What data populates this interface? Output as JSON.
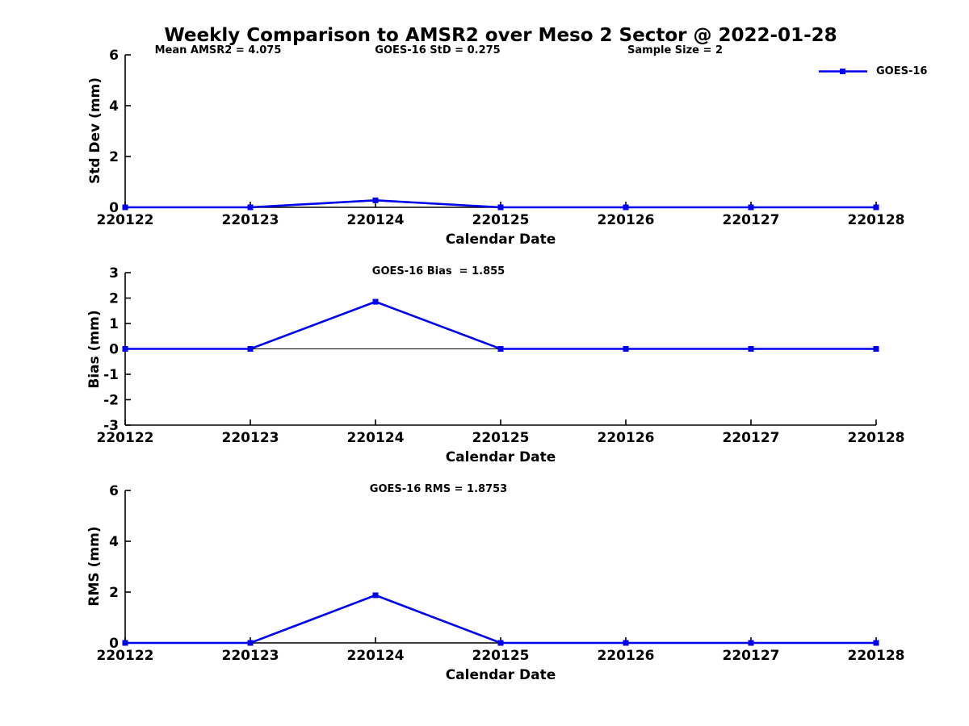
{
  "figure": {
    "title": "Weekly Comparison to AMSR2 over Meso 2 Sector @ 2022-01-28"
  },
  "legend": {
    "label": "GOES-16"
  },
  "colors": {
    "series": "#0000ee",
    "axis": "#000000",
    "text": "#000000",
    "background": "#ffffff"
  },
  "chart_data": [
    {
      "type": "line",
      "name": "std-dev",
      "annotations": [
        "Mean AMSR2 = 4.075",
        "GOES-16 StD = 0.275",
        "Sample Size = 2"
      ],
      "categories": [
        "220122",
        "220123",
        "220124",
        "220125",
        "220126",
        "220127",
        "220128"
      ],
      "series": [
        {
          "name": "GOES-16",
          "values": [
            0,
            0,
            0.275,
            0,
            0,
            0,
            0
          ]
        }
      ],
      "xlabel": "Calendar Date",
      "ylabel": "Std Dev (mm)",
      "ylim": [
        0,
        6
      ],
      "yticks": [
        0,
        2,
        4,
        6
      ],
      "marker": "square",
      "grid": false,
      "legend_position": "upper-right-outside"
    },
    {
      "type": "line",
      "name": "bias",
      "title": "GOES-16 Bias  = 1.855",
      "categories": [
        "220122",
        "220123",
        "220124",
        "220125",
        "220126",
        "220127",
        "220128"
      ],
      "series": [
        {
          "name": "GOES-16",
          "values": [
            0,
            0,
            1.855,
            0,
            0,
            0,
            0
          ]
        }
      ],
      "xlabel": "Calendar Date",
      "ylabel": "Bias (mm)",
      "ylim": [
        -3,
        3
      ],
      "yticks": [
        -3,
        -2,
        -1,
        0,
        1,
        2,
        3
      ],
      "zero_line": true,
      "marker": "square",
      "grid": false
    },
    {
      "type": "line",
      "name": "rms",
      "title": "GOES-16 RMS = 1.8753",
      "categories": [
        "220122",
        "220123",
        "220124",
        "220125",
        "220126",
        "220127",
        "220128"
      ],
      "series": [
        {
          "name": "GOES-16",
          "values": [
            0,
            0,
            1.8753,
            0,
            0,
            0,
            0
          ]
        }
      ],
      "xlabel": "Calendar Date",
      "ylabel": "RMS (mm)",
      "ylim": [
        0,
        6
      ],
      "yticks": [
        0,
        2,
        4,
        6
      ],
      "marker": "square",
      "grid": false
    }
  ]
}
